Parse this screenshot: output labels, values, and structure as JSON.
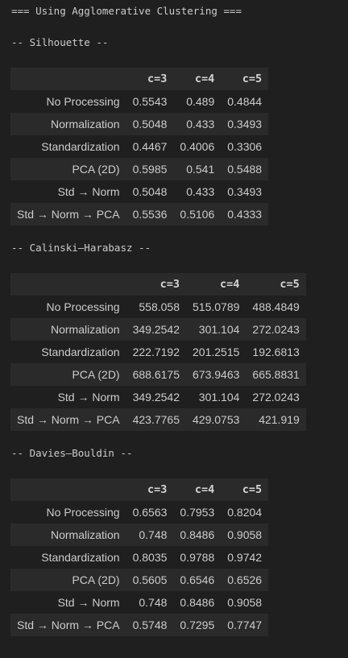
{
  "title": "=== Using Agglomerative Clustering ===",
  "sections": [
    {
      "heading": "-- Silhouette --",
      "columns": [
        "c=3",
        "c=4",
        "c=5"
      ],
      "rows": [
        {
          "label": "No Processing",
          "values": [
            "0.5543",
            "0.489",
            "0.4844"
          ]
        },
        {
          "label": "Normalization",
          "values": [
            "0.5048",
            "0.433",
            "0.3493"
          ]
        },
        {
          "label": "Standardization",
          "values": [
            "0.4467",
            "0.4006",
            "0.3306"
          ]
        },
        {
          "label": "PCA (2D)",
          "values": [
            "0.5985",
            "0.541",
            "0.5488"
          ]
        },
        {
          "label": "Std → Norm",
          "values": [
            "0.5048",
            "0.433",
            "0.3493"
          ]
        },
        {
          "label": "Std → Norm → PCA",
          "values": [
            "0.5536",
            "0.5106",
            "0.4333"
          ]
        }
      ]
    },
    {
      "heading": "-- Calinski–Harabasz --",
      "columns": [
        "c=3",
        "c=4",
        "c=5"
      ],
      "rows": [
        {
          "label": "No Processing",
          "values": [
            "558.058",
            "515.0789",
            "488.4849"
          ]
        },
        {
          "label": "Normalization",
          "values": [
            "349.2542",
            "301.104",
            "272.0243"
          ]
        },
        {
          "label": "Standardization",
          "values": [
            "222.7192",
            "201.2515",
            "192.6813"
          ]
        },
        {
          "label": "PCA (2D)",
          "values": [
            "688.6175",
            "673.9463",
            "665.8831"
          ]
        },
        {
          "label": "Std → Norm",
          "values": [
            "349.2542",
            "301.104",
            "272.0243"
          ]
        },
        {
          "label": "Std → Norm → PCA",
          "values": [
            "423.7765",
            "429.0753",
            "421.919"
          ]
        }
      ]
    },
    {
      "heading": "-- Davies–Bouldin --",
      "columns": [
        "c=3",
        "c=4",
        "c=5"
      ],
      "rows": [
        {
          "label": "No Processing",
          "values": [
            "0.6563",
            "0.7953",
            "0.8204"
          ]
        },
        {
          "label": "Normalization",
          "values": [
            "0.748",
            "0.8486",
            "0.9058"
          ]
        },
        {
          "label": "Standardization",
          "values": [
            "0.8035",
            "0.9788",
            "0.9742"
          ]
        },
        {
          "label": "PCA (2D)",
          "values": [
            "0.5605",
            "0.6546",
            "0.6526"
          ]
        },
        {
          "label": "Std → Norm",
          "values": [
            "0.748",
            "0.8486",
            "0.9058"
          ]
        },
        {
          "label": "Std → Norm → PCA",
          "values": [
            "0.5748",
            "0.7295",
            "0.7747"
          ]
        }
      ]
    }
  ]
}
